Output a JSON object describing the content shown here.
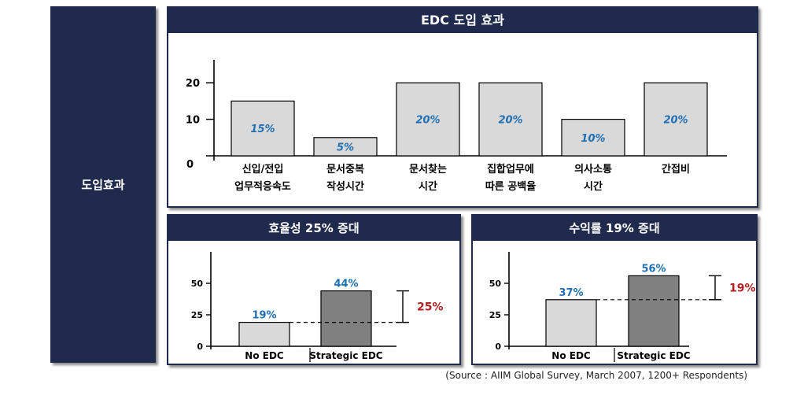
{
  "side_label": "도입효과",
  "source": "(Source : AIIM Global Survey, March 2007, 1200+ Respondents)",
  "colors": {
    "navy": "#1f2a4d",
    "bar_light": "#d9d9d9",
    "bar_dark": "#808080",
    "value_blue": "#1f6fb2",
    "delta_red": "#b22222"
  },
  "chart_data": [
    {
      "type": "bar",
      "title": "EDC 도입 효과",
      "categories": [
        [
          "신입/전입",
          "업무적응속도"
        ],
        [
          "문서중복",
          "작성시간"
        ],
        [
          "문서찾는",
          "시간"
        ],
        [
          "집합업무에",
          "따른 공백율"
        ],
        [
          "의사소통",
          "시간"
        ],
        [
          "간접비"
        ]
      ],
      "values": [
        15,
        5,
        20,
        20,
        10,
        20
      ],
      "value_labels": [
        "15%",
        "5%",
        "20%",
        "20%",
        "10%",
        "20%"
      ],
      "yticks": [
        0,
        10,
        20
      ],
      "ylim": [
        0,
        25
      ],
      "grid": false
    },
    {
      "type": "bar",
      "title": "효율성 25% 증대",
      "categories": [
        "No EDC",
        "Strategic EDC"
      ],
      "values": [
        19,
        44
      ],
      "value_labels": [
        "19%",
        "44%"
      ],
      "yticks": [
        0,
        25,
        50
      ],
      "ylim": [
        0,
        60
      ],
      "delta_label": "25%",
      "grid": false
    },
    {
      "type": "bar",
      "title": "수익률 19% 증대",
      "categories": [
        "No EDC",
        "Strategic EDC"
      ],
      "values": [
        37,
        56
      ],
      "value_labels": [
        "37%",
        "56%"
      ],
      "yticks": [
        0,
        25,
        50
      ],
      "ylim": [
        0,
        60
      ],
      "delta_label": "19%",
      "grid": false
    }
  ]
}
